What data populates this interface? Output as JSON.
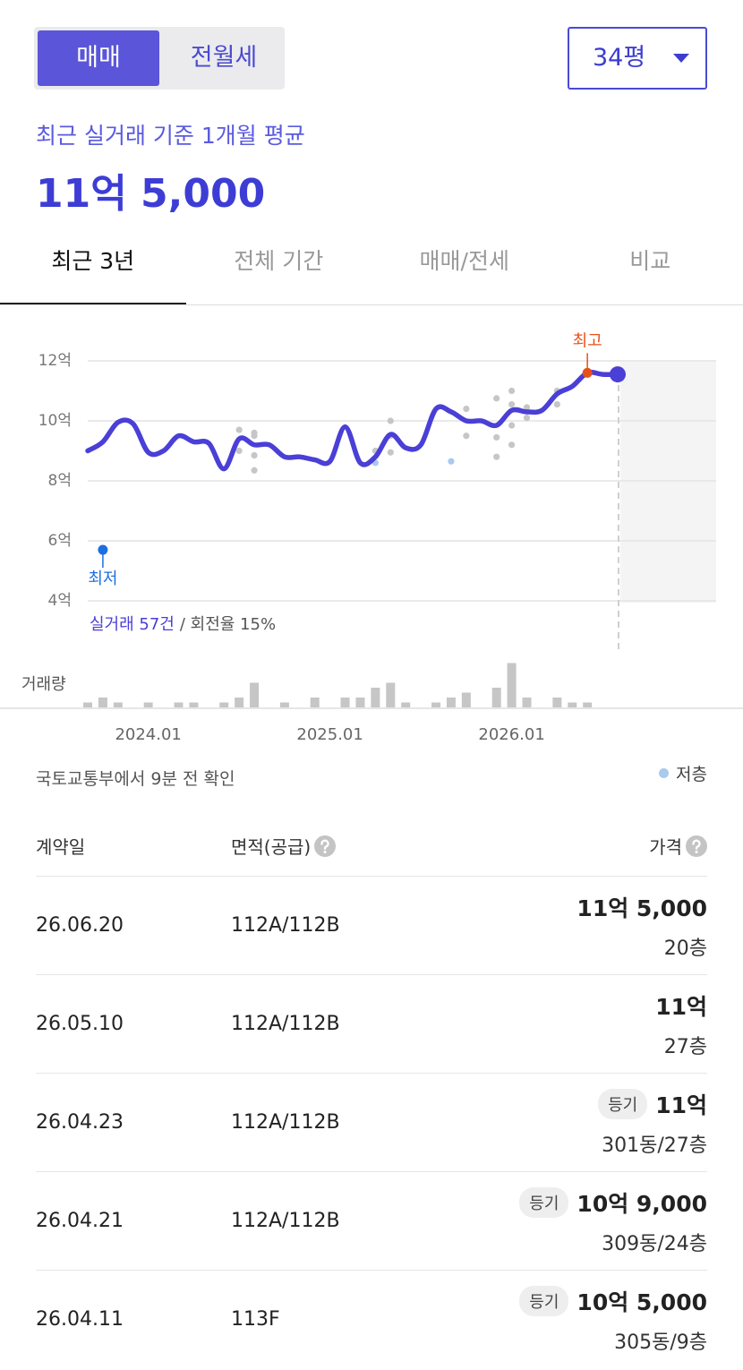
{
  "toggle": {
    "options": [
      "매매",
      "전월세"
    ],
    "active": 0
  },
  "dropdown": "34평",
  "summary": {
    "caption": "최근 실거래 기준 1개월 평균",
    "price": "11억 5,000"
  },
  "tabs": {
    "items": [
      "최근 3년",
      "전체 기간",
      "매매/전세",
      "비교"
    ],
    "active": 0
  },
  "chart_data": {
    "type": "line",
    "x": [
      "2023.09",
      "2023.10",
      "2023.11",
      "2023.12",
      "2024.01",
      "2024.02",
      "2024.03",
      "2024.04",
      "2024.05",
      "2024.06",
      "2024.07",
      "2024.08",
      "2024.09",
      "2024.10",
      "2024.11",
      "2024.12",
      "2025.01",
      "2025.02",
      "2025.03",
      "2025.04",
      "2025.05",
      "2025.06",
      "2025.07",
      "2025.08",
      "2025.09",
      "2025.10",
      "2025.11",
      "2025.12",
      "2026.01",
      "2026.02",
      "2026.03",
      "2026.04",
      "2026.05",
      "2026.06",
      "2026.07",
      "2026.08"
    ],
    "series": [
      {
        "color": "#4a3fd6",
        "values": [
          9.0,
          9.3,
          9.95,
          9.9,
          8.95,
          9.0,
          9.5,
          9.3,
          9.25,
          8.4,
          9.4,
          9.2,
          9.2,
          8.8,
          8.8,
          8.7,
          8.65,
          9.8,
          8.6,
          8.8,
          9.55,
          9.1,
          9.2,
          10.4,
          10.3,
          10.0,
          10.0,
          9.85,
          10.35,
          10.3,
          10.35,
          10.9,
          11.15,
          11.6,
          11.55,
          11.55
        ]
      },
      {
        "type": "scatter",
        "color": "#c6c6c6",
        "x": [
          "2024.07",
          "2024.07",
          "2024.08",
          "2024.08",
          "2024.08",
          "2024.08",
          "2025.04",
          "2025.05",
          "2025.05",
          "2025.05",
          "2025.10",
          "2025.10",
          "2025.12",
          "2025.12",
          "2025.12",
          "2026.01",
          "2026.01",
          "2026.01",
          "2026.01",
          "2026.02",
          "2026.02",
          "2026.04",
          "2026.04"
        ],
        "values": [
          9.7,
          9.0,
          9.6,
          9.5,
          8.85,
          8.35,
          9.0,
          10.0,
          9.5,
          8.95,
          9.5,
          10.4,
          10.75,
          9.45,
          8.8,
          11.0,
          10.55,
          9.85,
          9.2,
          10.45,
          10.1,
          11.0,
          10.55
        ]
      },
      {
        "type": "scatter",
        "name": "저층",
        "color": "#a9c9ef",
        "x": [
          "2025.04",
          "2025.09"
        ],
        "values": [
          8.6,
          8.65
        ]
      }
    ],
    "ylim": [
      4,
      12
    ],
    "yticks": [
      {
        "value": 12,
        "label": "12억"
      },
      {
        "value": 10,
        "label": "10억"
      },
      {
        "value": 8,
        "label": "8억"
      },
      {
        "value": 6,
        "label": "6억"
      },
      {
        "value": 4,
        "label": "4억"
      }
    ],
    "xticks": [
      "2024.01",
      "2025.01",
      "2026.01"
    ],
    "grid": true,
    "highest": {
      "label": "최고",
      "x": "2026.06",
      "value": 11.6,
      "color": "#e8501a"
    },
    "lowest": {
      "label": "최저",
      "x": "2023.10",
      "value": 5.7,
      "color": "#1d6fe0"
    },
    "volume": {
      "label": "거래량",
      "color": "#c6c6c6",
      "values": [
        1,
        2,
        1,
        0,
        1,
        0,
        1,
        1,
        0,
        1,
        2,
        5,
        0,
        1,
        0,
        2,
        0,
        2,
        2,
        4,
        5,
        1,
        0,
        1,
        2,
        3,
        0,
        4,
        9,
        2,
        0,
        2,
        1,
        1,
        0,
        0
      ]
    },
    "stats": {
      "count": "실거래 57건",
      "rate": "/ 회전율 15%"
    }
  },
  "source_note": "국토교통부에서 9분 전 확인",
  "table": {
    "headers": [
      "계약일",
      "면적(공급)",
      "가격"
    ],
    "rows": [
      {
        "date": "26.06.20",
        "area": "112A/112B",
        "price": "11억 5,000",
        "floor": "20층"
      },
      {
        "date": "26.05.10",
        "area": "112A/112B",
        "price": "11억",
        "floor": "27층"
      },
      {
        "date": "26.04.23",
        "area": "112A/112B",
        "badge": "등기",
        "price": "11억",
        "floor": "301동/27층"
      },
      {
        "date": "26.04.21",
        "area": "112A/112B",
        "badge": "등기",
        "price": "10억 9,000",
        "floor": "309동/24층"
      },
      {
        "date": "26.04.11",
        "area": "113F",
        "badge": "등기",
        "price": "10억 5,000",
        "floor": "305동/9층"
      }
    ]
  }
}
